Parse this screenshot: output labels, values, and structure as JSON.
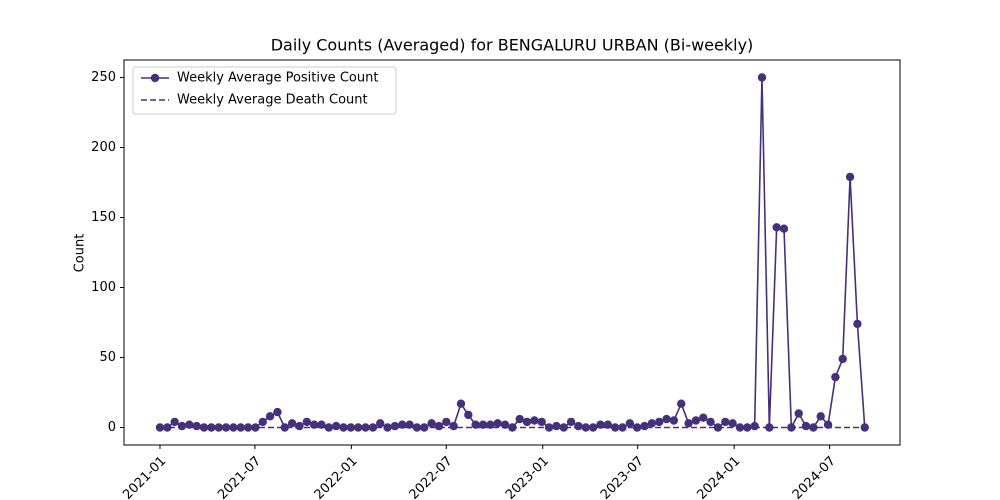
{
  "chart_data": {
    "type": "line",
    "title": "Daily Counts (Averaged) for BENGALURU URBAN (Bi-weekly)",
    "y_label": "Count",
    "categories": [
      null,
      null,
      null,
      null,
      null,
      null,
      null,
      null,
      null,
      null,
      null,
      null,
      null,
      null,
      null,
      null,
      null,
      null,
      null,
      null,
      null,
      null,
      null,
      null,
      null,
      null,
      null,
      null,
      null,
      null,
      null,
      null,
      null,
      null,
      null,
      null,
      null,
      null,
      null,
      null,
      null,
      null,
      null,
      null,
      null,
      null,
      null,
      null,
      null,
      null,
      null,
      null,
      null,
      null,
      null,
      null,
      null,
      null,
      null,
      null,
      null,
      null,
      null,
      null,
      null,
      null,
      null,
      null,
      null,
      null,
      null,
      null,
      null,
      null,
      null,
      null,
      null,
      null,
      null,
      null,
      null,
      null,
      null,
      null,
      null,
      null,
      null,
      null,
      null,
      null,
      null,
      null,
      null,
      null,
      null,
      null,
      null
    ],
    "series": [
      {
        "name": "Weekly Average Positive Count",
        "color": "#46307c",
        "dash": false,
        "marker": true,
        "values": [
          0,
          0,
          4,
          1,
          2,
          1,
          0,
          0,
          0,
          0,
          0,
          0,
          0,
          0,
          4,
          8,
          11,
          0,
          3,
          1,
          4,
          2,
          2,
          0,
          1,
          0,
          0,
          0,
          0,
          0,
          3,
          0,
          1,
          2,
          2,
          0,
          0,
          3,
          1,
          4,
          1,
          17,
          9,
          2,
          2,
          2,
          3,
          2,
          0,
          6,
          4,
          5,
          4,
          0,
          1,
          0,
          4,
          1,
          0,
          0,
          2,
          2,
          0,
          0,
          3,
          0,
          1,
          3,
          4,
          6,
          5,
          17,
          3,
          5,
          7,
          4,
          0,
          4,
          3,
          0,
          0,
          1,
          250,
          0,
          143,
          142,
          0,
          10,
          1,
          0,
          8,
          2,
          36,
          49,
          179,
          74,
          0
        ]
      },
      {
        "name": "Weekly Average Death Count",
        "color": "#46307c",
        "dash": true,
        "marker": false,
        "values": [
          0,
          0,
          0,
          0,
          0,
          0,
          0,
          0,
          0,
          0,
          0,
          0,
          0,
          0,
          0,
          0,
          0,
          0,
          0,
          0,
          0,
          0,
          0,
          0,
          0,
          0,
          0,
          0,
          0,
          0,
          0,
          0,
          0,
          0,
          0,
          0,
          0,
          0,
          0,
          0,
          0,
          0,
          0,
          0,
          0,
          0,
          0,
          0,
          0,
          0,
          0,
          0,
          0,
          0,
          0,
          0,
          0,
          0,
          0,
          0,
          0,
          0,
          0,
          0,
          0,
          0,
          0,
          0,
          0,
          0,
          0,
          0,
          0,
          0,
          0,
          0,
          0,
          0,
          0,
          0,
          0,
          0,
          0,
          0,
          0,
          0,
          0,
          0,
          0,
          0,
          0,
          0,
          0,
          0,
          0,
          0,
          0
        ]
      }
    ],
    "xlim": [
      -4.9,
      100.8
    ],
    "xticks": [
      {
        "value": 0,
        "label": "2021-01"
      },
      {
        "value": 12.93,
        "label": "2021-07"
      },
      {
        "value": 26.07,
        "label": "2022-01"
      },
      {
        "value": 39,
        "label": "2022-07"
      },
      {
        "value": 52.14,
        "label": "2023-01"
      },
      {
        "value": 65.07,
        "label": "2023-07"
      },
      {
        "value": 78.21,
        "label": "2024-01"
      },
      {
        "value": 91.21,
        "label": "2024-07"
      }
    ],
    "ylim": [
      -12.5,
      262.5
    ],
    "yticks": [
      0,
      50,
      100,
      150,
      200,
      250
    ],
    "legend": "upper left"
  }
}
